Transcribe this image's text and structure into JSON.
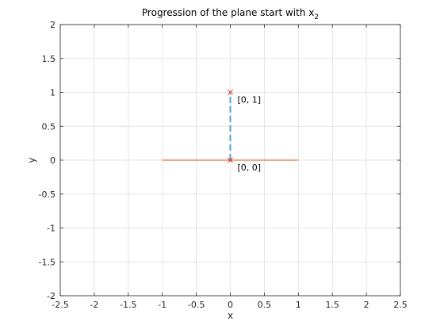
{
  "chart_data": {
    "type": "line",
    "title": {
      "text": "Progression of the plane start with x",
      "subscript": "2"
    },
    "xlabel": "x",
    "ylabel": "y",
    "xlim": [
      -2.5,
      2.5
    ],
    "ylim": [
      -2,
      2
    ],
    "xticks": [
      -2.5,
      -2,
      -1.5,
      -1,
      -0.5,
      0,
      0.5,
      1,
      1.5,
      2,
      2.5
    ],
    "yticks": [
      -2,
      -1.5,
      -1,
      -0.5,
      0,
      0.5,
      1,
      1.5,
      2
    ],
    "xtick_labels": [
      "-2.5",
      "-2",
      "-1.5",
      "-1",
      "-0.5",
      "0",
      "0.5",
      "1",
      "1.5",
      "2",
      "2.5"
    ],
    "ytick_labels": [
      "-2",
      "-1.5",
      "-1",
      "-0.5",
      "0",
      "0.5",
      "1",
      "1.5",
      "2"
    ],
    "grid": true,
    "series": [
      {
        "style": "solid",
        "color": "#d95319",
        "x": [
          -1,
          1
        ],
        "y": [
          0,
          0
        ]
      },
      {
        "style": "dashed",
        "color": "#4fa3d6",
        "x": [
          0,
          0
        ],
        "y": [
          0,
          1
        ]
      },
      {
        "style": "markers",
        "marker": "x",
        "color": "#e8292b",
        "x": [
          0,
          0
        ],
        "y": [
          0,
          1
        ]
      }
    ],
    "annotations": [
      {
        "text": "[0, 1]",
        "x": 0,
        "y": 1
      },
      {
        "text": "[0, 0]",
        "x": 0,
        "y": 0
      }
    ]
  }
}
